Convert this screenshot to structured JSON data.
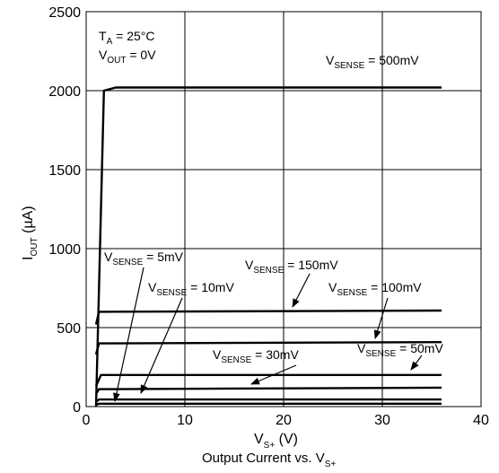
{
  "chart_data": {
    "type": "line",
    "title": "",
    "caption": {
      "main": "Output Current vs. V",
      "sub": "S+"
    },
    "xlabel": {
      "main": "V",
      "sub": "S+",
      "tail": " (V)"
    },
    "ylabel": {
      "main": "I",
      "sub": "OUT",
      "tail": " (µA)"
    },
    "xlim": [
      0,
      40
    ],
    "ylim": [
      0,
      2500
    ],
    "x_ticks": [
      "0",
      "10",
      "20",
      "30",
      "40"
    ],
    "y_ticks": [
      "0",
      "500",
      "1000",
      "1500",
      "2000",
      "2500"
    ],
    "grid": true,
    "conditions": [
      {
        "main": "T",
        "sub": "A",
        "tail": " = 25°C"
      },
      {
        "main": "V",
        "sub": "OUT",
        "tail": " = 0V"
      }
    ],
    "series": [
      {
        "name_main": "V",
        "name_sub": "SENSE",
        "name_tail": " = 500mV",
        "points": [
          [
            1.0,
            0
          ],
          [
            1.8,
            2000
          ],
          [
            3.0,
            2020
          ],
          [
            36,
            2020
          ]
        ]
      },
      {
        "name_main": "V",
        "name_sub": "SENSE",
        "name_tail": " = 150mV",
        "points": [
          [
            1.0,
            520
          ],
          [
            1.3,
            600
          ],
          [
            36,
            608
          ]
        ]
      },
      {
        "name_main": "V",
        "name_sub": "SENSE",
        "name_tail": " = 100mV",
        "points": [
          [
            1.0,
            330
          ],
          [
            1.3,
            400
          ],
          [
            36,
            408
          ]
        ]
      },
      {
        "name_main": "V",
        "name_sub": "SENSE",
        "name_tail": " = 50mV",
        "points": [
          [
            1.0,
            130
          ],
          [
            1.5,
            200
          ],
          [
            36,
            200
          ]
        ]
      },
      {
        "name_main": "V",
        "name_sub": "SENSE",
        "name_tail": " = 30mV",
        "points": [
          [
            1.0,
            80
          ],
          [
            1.3,
            110
          ],
          [
            36,
            120
          ]
        ]
      },
      {
        "name_main": "V",
        "name_sub": "SENSE",
        "name_tail": " = 10mV",
        "points": [
          [
            1.0,
            30
          ],
          [
            1.3,
            45
          ],
          [
            36,
            45
          ]
        ]
      },
      {
        "name_main": "V",
        "name_sub": "SENSE",
        "name_tail": " = 5mV",
        "points": [
          [
            1.0,
            12
          ],
          [
            1.3,
            18
          ],
          [
            36,
            18
          ]
        ]
      }
    ]
  }
}
